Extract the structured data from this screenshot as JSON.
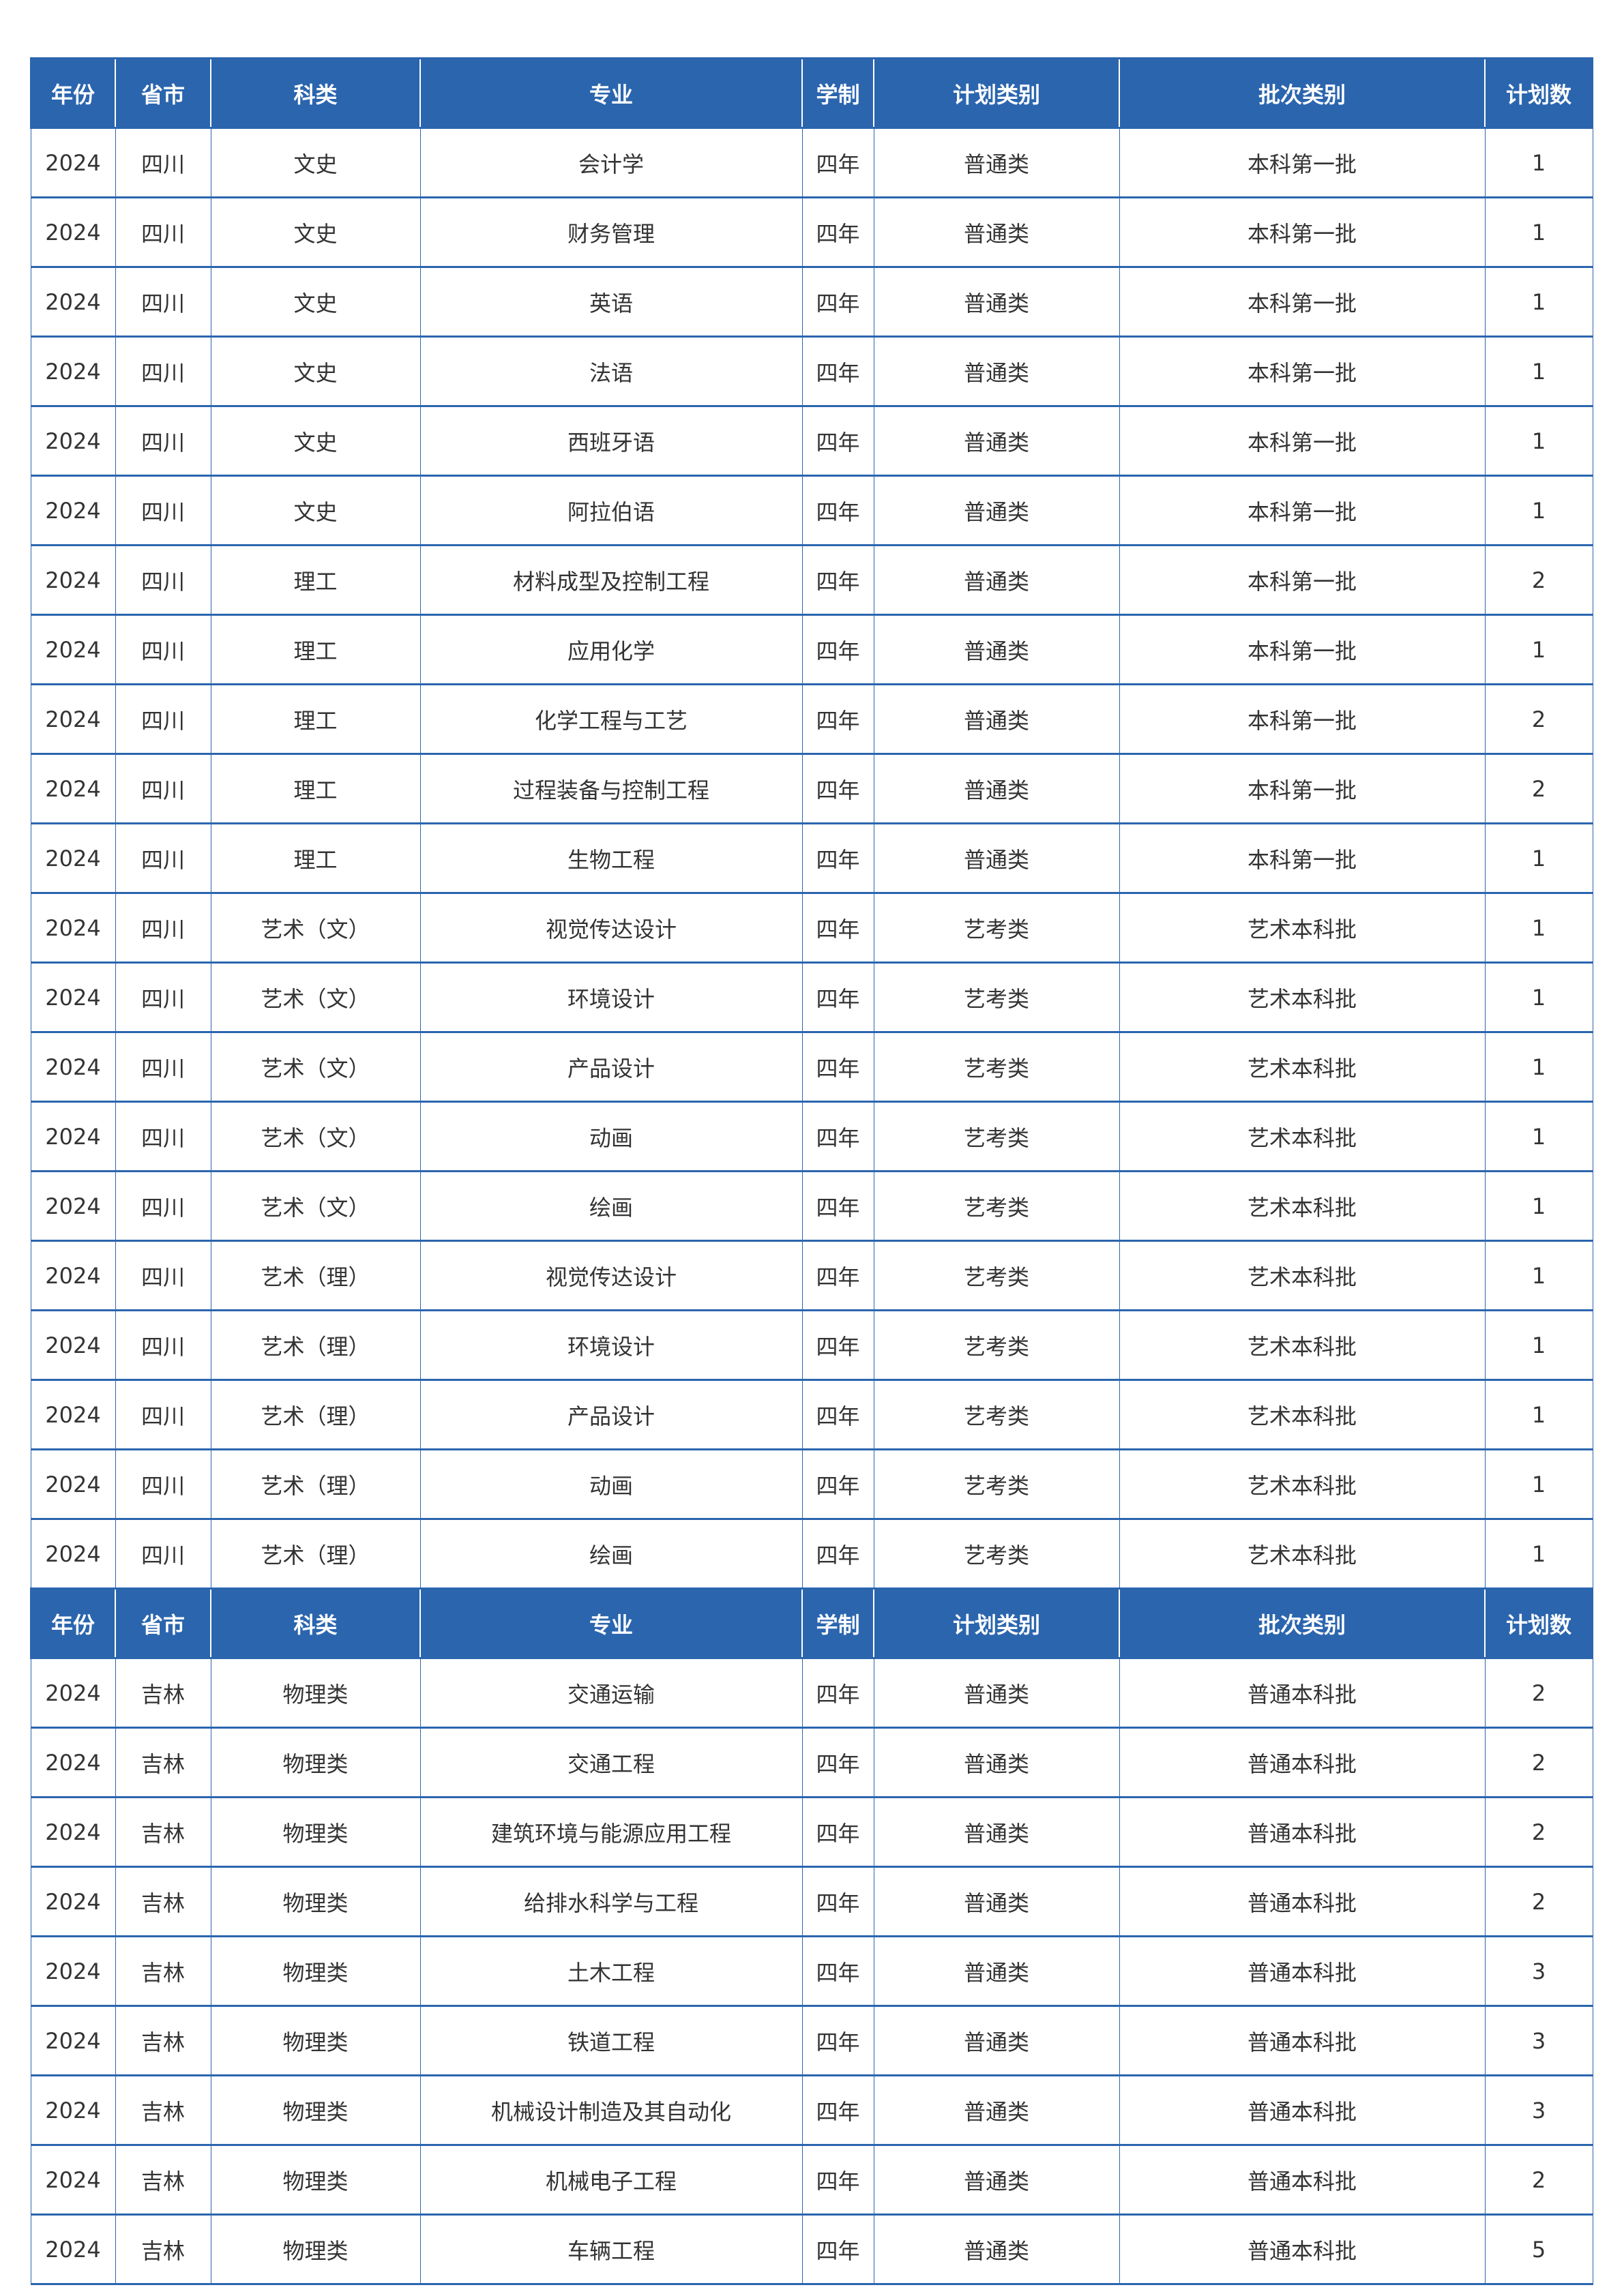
{
  "headers": [
    "年份",
    "省市",
    "科类",
    "专业",
    "学制",
    "计划类别",
    "批次类别",
    "计划数"
  ],
  "colors": {
    "header_bg": "#2b65ae",
    "border": "#2b65ae",
    "text": "#333333"
  },
  "sections": [
    {
      "rows": [
        [
          "2024",
          "四川",
          "文史",
          "会计学",
          "四年",
          "普通类",
          "本科第一批",
          "1"
        ],
        [
          "2024",
          "四川",
          "文史",
          "财务管理",
          "四年",
          "普通类",
          "本科第一批",
          "1"
        ],
        [
          "2024",
          "四川",
          "文史",
          "英语",
          "四年",
          "普通类",
          "本科第一批",
          "1"
        ],
        [
          "2024",
          "四川",
          "文史",
          "法语",
          "四年",
          "普通类",
          "本科第一批",
          "1"
        ],
        [
          "2024",
          "四川",
          "文史",
          "西班牙语",
          "四年",
          "普通类",
          "本科第一批",
          "1"
        ],
        [
          "2024",
          "四川",
          "文史",
          "阿拉伯语",
          "四年",
          "普通类",
          "本科第一批",
          "1"
        ],
        [
          "2024",
          "四川",
          "理工",
          "材料成型及控制工程",
          "四年",
          "普通类",
          "本科第一批",
          "2"
        ],
        [
          "2024",
          "四川",
          "理工",
          "应用化学",
          "四年",
          "普通类",
          "本科第一批",
          "1"
        ],
        [
          "2024",
          "四川",
          "理工",
          "化学工程与工艺",
          "四年",
          "普通类",
          "本科第一批",
          "2"
        ],
        [
          "2024",
          "四川",
          "理工",
          "过程装备与控制工程",
          "四年",
          "普通类",
          "本科第一批",
          "2"
        ],
        [
          "2024",
          "四川",
          "理工",
          "生物工程",
          "四年",
          "普通类",
          "本科第一批",
          "1"
        ],
        [
          "2024",
          "四川",
          "艺术（文）",
          "视觉传达设计",
          "四年",
          "艺考类",
          "艺术本科批",
          "1"
        ],
        [
          "2024",
          "四川",
          "艺术（文）",
          "环境设计",
          "四年",
          "艺考类",
          "艺术本科批",
          "1"
        ],
        [
          "2024",
          "四川",
          "艺术（文）",
          "产品设计",
          "四年",
          "艺考类",
          "艺术本科批",
          "1"
        ],
        [
          "2024",
          "四川",
          "艺术（文）",
          "动画",
          "四年",
          "艺考类",
          "艺术本科批",
          "1"
        ],
        [
          "2024",
          "四川",
          "艺术（文）",
          "绘画",
          "四年",
          "艺考类",
          "艺术本科批",
          "1"
        ],
        [
          "2024",
          "四川",
          "艺术（理）",
          "视觉传达设计",
          "四年",
          "艺考类",
          "艺术本科批",
          "1"
        ],
        [
          "2024",
          "四川",
          "艺术（理）",
          "环境设计",
          "四年",
          "艺考类",
          "艺术本科批",
          "1"
        ],
        [
          "2024",
          "四川",
          "艺术（理）",
          "产品设计",
          "四年",
          "艺考类",
          "艺术本科批",
          "1"
        ],
        [
          "2024",
          "四川",
          "艺术（理）",
          "动画",
          "四年",
          "艺考类",
          "艺术本科批",
          "1"
        ],
        [
          "2024",
          "四川",
          "艺术（理）",
          "绘画",
          "四年",
          "艺考类",
          "艺术本科批",
          "1"
        ]
      ]
    },
    {
      "rows": [
        [
          "2024",
          "吉林",
          "物理类",
          "交通运输",
          "四年",
          "普通类",
          "普通本科批",
          "2"
        ],
        [
          "2024",
          "吉林",
          "物理类",
          "交通工程",
          "四年",
          "普通类",
          "普通本科批",
          "2"
        ],
        [
          "2024",
          "吉林",
          "物理类",
          "建筑环境与能源应用工程",
          "四年",
          "普通类",
          "普通本科批",
          "2"
        ],
        [
          "2024",
          "吉林",
          "物理类",
          "给排水科学与工程",
          "四年",
          "普通类",
          "普通本科批",
          "2"
        ],
        [
          "2024",
          "吉林",
          "物理类",
          "土木工程",
          "四年",
          "普通类",
          "普通本科批",
          "3"
        ],
        [
          "2024",
          "吉林",
          "物理类",
          "铁道工程",
          "四年",
          "普通类",
          "普通本科批",
          "3"
        ],
        [
          "2024",
          "吉林",
          "物理类",
          "机械设计制造及其自动化",
          "四年",
          "普通类",
          "普通本科批",
          "3"
        ],
        [
          "2024",
          "吉林",
          "物理类",
          "机械电子工程",
          "四年",
          "普通类",
          "普通本科批",
          "2"
        ],
        [
          "2024",
          "吉林",
          "物理类",
          "车辆工程",
          "四年",
          "普通类",
          "普通本科批",
          "5"
        ]
      ]
    }
  ]
}
